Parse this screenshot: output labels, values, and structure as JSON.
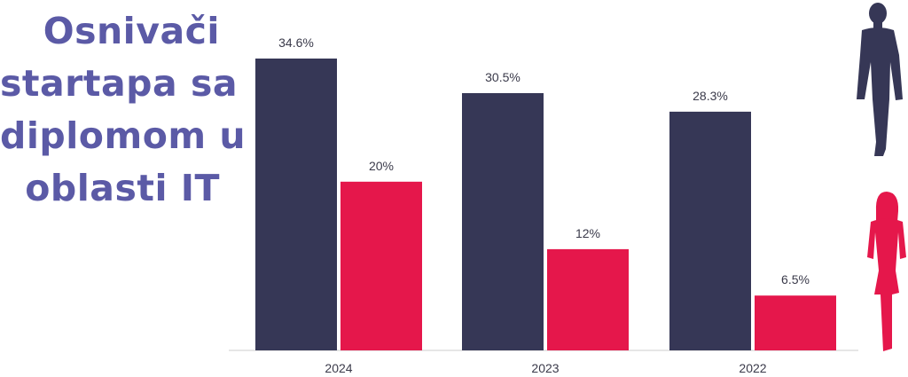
{
  "title_lines": [
    "Osnivači",
    "startapa sa",
    "diplomom u",
    "oblasti IT"
  ],
  "colors": {
    "title": "#5B5AA6",
    "men": "#363756",
    "women": "#E5174B",
    "label": "#3a3a4a",
    "axis": "#cccccc"
  },
  "icons": {
    "men": "man-silhouette-icon",
    "women": "woman-silhouette-icon"
  },
  "chart_data": {
    "type": "bar",
    "categories": [
      "2024",
      "2023",
      "2022"
    ],
    "series": [
      {
        "values": [
          34.6,
          30.5,
          28.3
        ],
        "labels": [
          "34.6%",
          "30.5%",
          "28.3%"
        ]
      },
      {
        "values": [
          20,
          12,
          6.5
        ],
        "labels": [
          "20%",
          "12%",
          "6.5%"
        ]
      }
    ],
    "ylim": [
      0,
      40
    ],
    "grid": false,
    "legend": "none"
  }
}
